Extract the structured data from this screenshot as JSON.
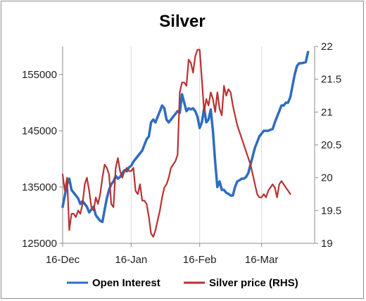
{
  "chart_data": {
    "type": "line",
    "title": "Silver",
    "x_ticks": [
      "16-Dec",
      "16-Jan",
      "16-Feb",
      "16-Mar"
    ],
    "x_range_days": [
      0,
      114
    ],
    "y_left": {
      "ticks": [
        "125000",
        "135000",
        "145000",
        "155000"
      ],
      "ylim": [
        125000,
        160000
      ]
    },
    "y_right": {
      "ticks": [
        "19",
        "19.5",
        "20",
        "20.5",
        "21",
        "21.5",
        "22"
      ],
      "ylim": [
        19,
        22
      ]
    },
    "grid": "vertical",
    "legend": "bottom",
    "series": [
      {
        "name": "Open Interest",
        "axis": "left",
        "color": "#2e6dc0",
        "points": [
          [
            0,
            131500
          ],
          [
            1,
            133500
          ],
          [
            2,
            135500
          ],
          [
            3,
            136500
          ],
          [
            4,
            134500
          ],
          [
            5,
            134000
          ],
          [
            6,
            133500
          ],
          [
            7,
            133000
          ],
          [
            8,
            132000
          ],
          [
            9,
            132500
          ],
          [
            10,
            132000
          ],
          [
            11,
            131500
          ],
          [
            12,
            130500
          ],
          [
            13,
            131000
          ],
          [
            14,
            131500
          ],
          [
            15,
            130000
          ],
          [
            16,
            129500
          ],
          [
            17,
            129000
          ],
          [
            18,
            128800
          ],
          [
            19,
            131000
          ],
          [
            20,
            133000
          ],
          [
            21,
            134500
          ],
          [
            22,
            135500
          ],
          [
            23,
            136000
          ],
          [
            24,
            137000
          ],
          [
            25,
            136500
          ],
          [
            26,
            136800
          ],
          [
            27,
            137500
          ],
          [
            28,
            138000
          ],
          [
            29,
            137800
          ],
          [
            30,
            138500
          ],
          [
            31,
            138800
          ],
          [
            32,
            139500
          ],
          [
            33,
            140000
          ],
          [
            34,
            140500
          ],
          [
            35,
            141000
          ],
          [
            36,
            141500
          ],
          [
            37,
            142500
          ],
          [
            38,
            143500
          ],
          [
            39,
            144000
          ],
          [
            40,
            146500
          ],
          [
            41,
            147000
          ],
          [
            42,
            146500
          ],
          [
            43,
            147500
          ],
          [
            44,
            148500
          ],
          [
            45,
            149500
          ],
          [
            46,
            149000
          ],
          [
            47,
            147000
          ],
          [
            48,
            146500
          ],
          [
            49,
            147000
          ],
          [
            50,
            147500
          ],
          [
            51,
            148000
          ],
          [
            52,
            148500
          ],
          [
            53,
            148200
          ],
          [
            54,
            151500
          ],
          [
            55,
            150000
          ],
          [
            56,
            148500
          ],
          [
            57,
            149000
          ],
          [
            58,
            148800
          ],
          [
            59,
            149000
          ],
          [
            60,
            148500
          ],
          [
            61,
            147500
          ],
          [
            62,
            145500
          ],
          [
            63,
            146500
          ],
          [
            64,
            149000
          ],
          [
            65,
            146500
          ],
          [
            66,
            147000
          ],
          [
            67,
            148800
          ],
          [
            68,
            145000
          ],
          [
            69,
            139500
          ],
          [
            70,
            135000
          ],
          [
            71,
            136000
          ],
          [
            72,
            134500
          ],
          [
            73,
            134500
          ],
          [
            74,
            134000
          ],
          [
            75,
            133800
          ],
          [
            76,
            133500
          ],
          [
            77,
            133500
          ],
          [
            78,
            135000
          ],
          [
            79,
            136000
          ],
          [
            80,
            136200
          ],
          [
            81,
            136500
          ],
          [
            82,
            136500
          ],
          [
            83,
            136800
          ],
          [
            84,
            137500
          ],
          [
            85,
            139000
          ],
          [
            86,
            140500
          ],
          [
            87,
            142000
          ],
          [
            88,
            143000
          ],
          [
            89,
            144000
          ],
          [
            90,
            144500
          ],
          [
            91,
            145000
          ],
          [
            92,
            145000
          ],
          [
            93,
            145000
          ],
          [
            94,
            145200
          ],
          [
            95,
            145300
          ],
          [
            96,
            146500
          ],
          [
            97,
            147500
          ],
          [
            98,
            148500
          ],
          [
            99,
            149500
          ],
          [
            100,
            149500
          ],
          [
            101,
            150000
          ],
          [
            102,
            150000
          ],
          [
            103,
            151000
          ],
          [
            104,
            153000
          ],
          [
            105,
            155000
          ],
          [
            106,
            156500
          ],
          [
            107,
            157000
          ],
          [
            108,
            157000
          ],
          [
            109,
            157100
          ],
          [
            110,
            157200
          ],
          [
            111,
            159000
          ]
        ]
      },
      {
        "name": "Silver price (RHS)",
        "axis": "right",
        "color": "#b93232",
        "points": [
          [
            0,
            20.05
          ],
          [
            1,
            19.8
          ],
          [
            2,
            20.0
          ],
          [
            3,
            19.2
          ],
          [
            4,
            19.45
          ],
          [
            5,
            19.45
          ],
          [
            6,
            19.4
          ],
          [
            7,
            19.5
          ],
          [
            8,
            19.45
          ],
          [
            9,
            19.6
          ],
          [
            10,
            19.9
          ],
          [
            11,
            20.0
          ],
          [
            12,
            19.8
          ],
          [
            13,
            19.55
          ],
          [
            14,
            19.5
          ],
          [
            15,
            19.7
          ],
          [
            16,
            19.6
          ],
          [
            17,
            19.75
          ],
          [
            18,
            20.0
          ],
          [
            19,
            20.2
          ],
          [
            20,
            20.15
          ],
          [
            21,
            20.05
          ],
          [
            22,
            19.6
          ],
          [
            23,
            19.55
          ],
          [
            24,
            20.15
          ],
          [
            25,
            20.3
          ],
          [
            26,
            20.1
          ],
          [
            27,
            20.0
          ],
          [
            28,
            20.1
          ],
          [
            29,
            20.15
          ],
          [
            30,
            20.1
          ],
          [
            31,
            20.1
          ],
          [
            32,
            20.15
          ],
          [
            33,
            19.8
          ],
          [
            34,
            19.75
          ],
          [
            35,
            19.9
          ],
          [
            36,
            19.65
          ],
          [
            37,
            19.65
          ],
          [
            38,
            19.6
          ],
          [
            39,
            19.4
          ],
          [
            40,
            19.15
          ],
          [
            41,
            19.1
          ],
          [
            42,
            19.2
          ],
          [
            43,
            19.35
          ],
          [
            44,
            19.5
          ],
          [
            45,
            19.7
          ],
          [
            46,
            19.85
          ],
          [
            47,
            19.9
          ],
          [
            48,
            20.0
          ],
          [
            49,
            20.15
          ],
          [
            50,
            20.2
          ],
          [
            51,
            20.25
          ],
          [
            52,
            20.35
          ],
          [
            53,
            21.3
          ],
          [
            54,
            21.45
          ],
          [
            55,
            21.45
          ],
          [
            56,
            21.4
          ],
          [
            57,
            21.8
          ],
          [
            58,
            21.75
          ],
          [
            59,
            21.6
          ],
          [
            60,
            21.85
          ],
          [
            61,
            21.95
          ],
          [
            62,
            21.95
          ],
          [
            63,
            21.5
          ],
          [
            64,
            21.0
          ],
          [
            65,
            21.2
          ],
          [
            66,
            21.1
          ],
          [
            67,
            21.3
          ],
          [
            68,
            21.2
          ],
          [
            69,
            21.0
          ],
          [
            70,
            21.3
          ],
          [
            71,
            21.05
          ],
          [
            72,
            20.95
          ],
          [
            73,
            21.4
          ],
          [
            74,
            21.25
          ],
          [
            75,
            21.35
          ],
          [
            76,
            21.3
          ],
          [
            77,
            21.1
          ],
          [
            78,
            20.95
          ],
          [
            79,
            20.8
          ],
          [
            80,
            20.7
          ],
          [
            81,
            20.6
          ],
          [
            82,
            20.5
          ],
          [
            83,
            20.4
          ],
          [
            84,
            20.3
          ],
          [
            85,
            20.2
          ],
          [
            86,
            20.05
          ],
          [
            87,
            19.9
          ],
          [
            88,
            19.75
          ],
          [
            89,
            19.7
          ],
          [
            90,
            19.7
          ],
          [
            91,
            19.75
          ],
          [
            92,
            19.7
          ],
          [
            93,
            19.8
          ],
          [
            94,
            19.85
          ],
          [
            95,
            19.9
          ],
          [
            96,
            19.85
          ],
          [
            97,
            19.7
          ],
          [
            98,
            19.9
          ],
          [
            99,
            19.95
          ],
          [
            100,
            19.9
          ],
          [
            101,
            19.85
          ],
          [
            102,
            19.8
          ],
          [
            103,
            19.75
          ]
        ]
      }
    ]
  }
}
